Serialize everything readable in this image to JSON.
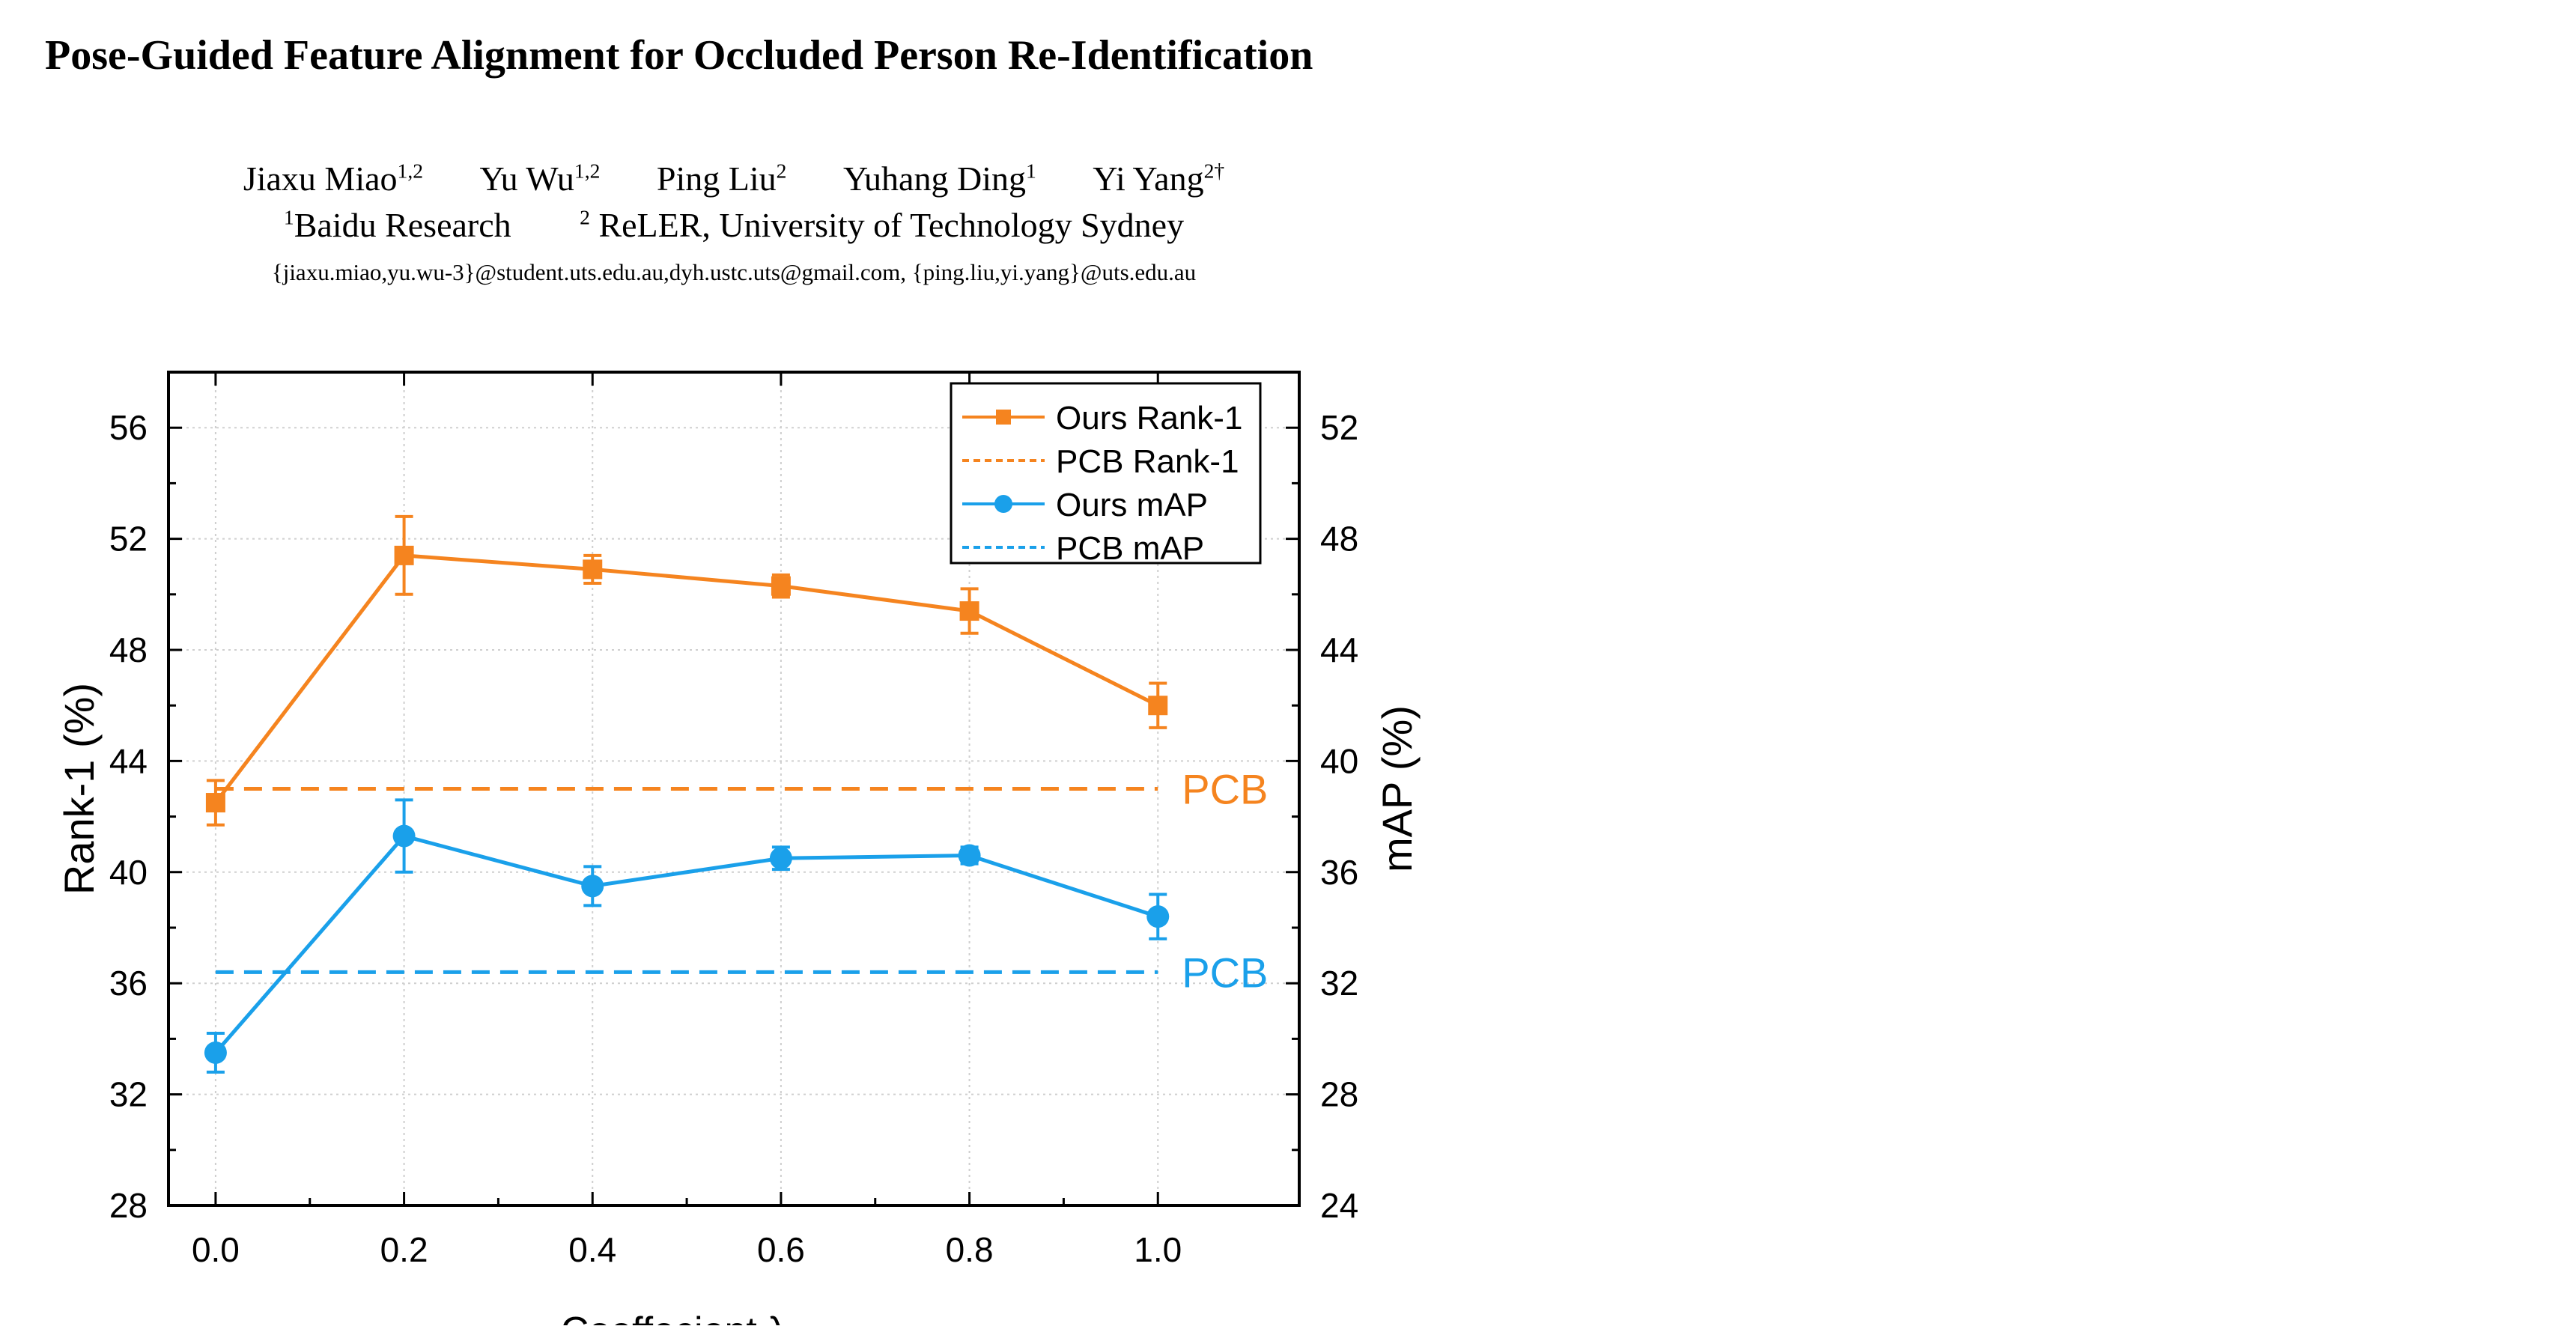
{
  "paper": {
    "title": "Pose-Guided Feature Alignment for Occluded Person Re-Identification",
    "authors": [
      {
        "name": "Jiaxu Miao",
        "sup": "1,2"
      },
      {
        "name": "Yu Wu",
        "sup": "1,2"
      },
      {
        "name": "Ping Liu",
        "sup": "2"
      },
      {
        "name": "Yuhang Ding",
        "sup": "1"
      },
      {
        "name": "Yi Yang",
        "sup": "2†"
      }
    ],
    "affiliations": [
      {
        "sup": "1",
        "name": "Baidu Research"
      },
      {
        "sup": "2",
        "name": "ReLER, University of Technology Sydney"
      }
    ],
    "emails": "{jiaxu.miao,yu.wu-3}@student.uts.edu.au,dyh.ustc.uts@gmail.com, {ping.liu,yi.yang}@uts.edu.au"
  },
  "chart_data": {
    "type": "line",
    "xlabel": "Coeffecient λ",
    "ylabel": "Rank-1 (%)",
    "y2label": "mAP (%)",
    "xlim": [
      -0.05,
      1.15
    ],
    "ylim": [
      28,
      58
    ],
    "y2lim": [
      24,
      54
    ],
    "xticks": [
      "0.0",
      "0.2",
      "0.4",
      "0.6",
      "0.8",
      "1.0"
    ],
    "yticks": [
      "28",
      "32",
      "36",
      "40",
      "44",
      "48",
      "52",
      "56"
    ],
    "y2ticks": [
      "24",
      "28",
      "32",
      "36",
      "40",
      "44",
      "48",
      "52"
    ],
    "grid": true,
    "legend_position": "top-right",
    "colors": {
      "rank1": "#f5841f",
      "map": "#1aa0ea"
    },
    "x": [
      0.0,
      0.2,
      0.4,
      0.6,
      0.8,
      1.0
    ],
    "series": [
      {
        "name": "Ours Rank-1",
        "axis": "left",
        "marker": "square",
        "color": "#f5841f",
        "values": [
          42.5,
          51.4,
          50.9,
          50.3,
          49.4,
          46.0
        ],
        "errors": [
          0.8,
          1.4,
          0.5,
          0.4,
          0.8,
          0.8
        ]
      },
      {
        "name": "Ours mAP",
        "axis": "right",
        "marker": "circle",
        "color": "#1aa0ea",
        "values": [
          29.5,
          37.3,
          35.5,
          36.5,
          36.6,
          34.4
        ],
        "errors": [
          0.7,
          1.3,
          0.7,
          0.4,
          0.3,
          0.8
        ]
      }
    ],
    "baselines": [
      {
        "name": "PCB Rank-1",
        "axis": "left",
        "value": 43.0,
        "color": "#f5841f",
        "label": "PCB"
      },
      {
        "name": "PCB mAP",
        "axis": "left",
        "value": 36.4,
        "color": "#1aa0ea",
        "label": "PCB"
      }
    ]
  }
}
